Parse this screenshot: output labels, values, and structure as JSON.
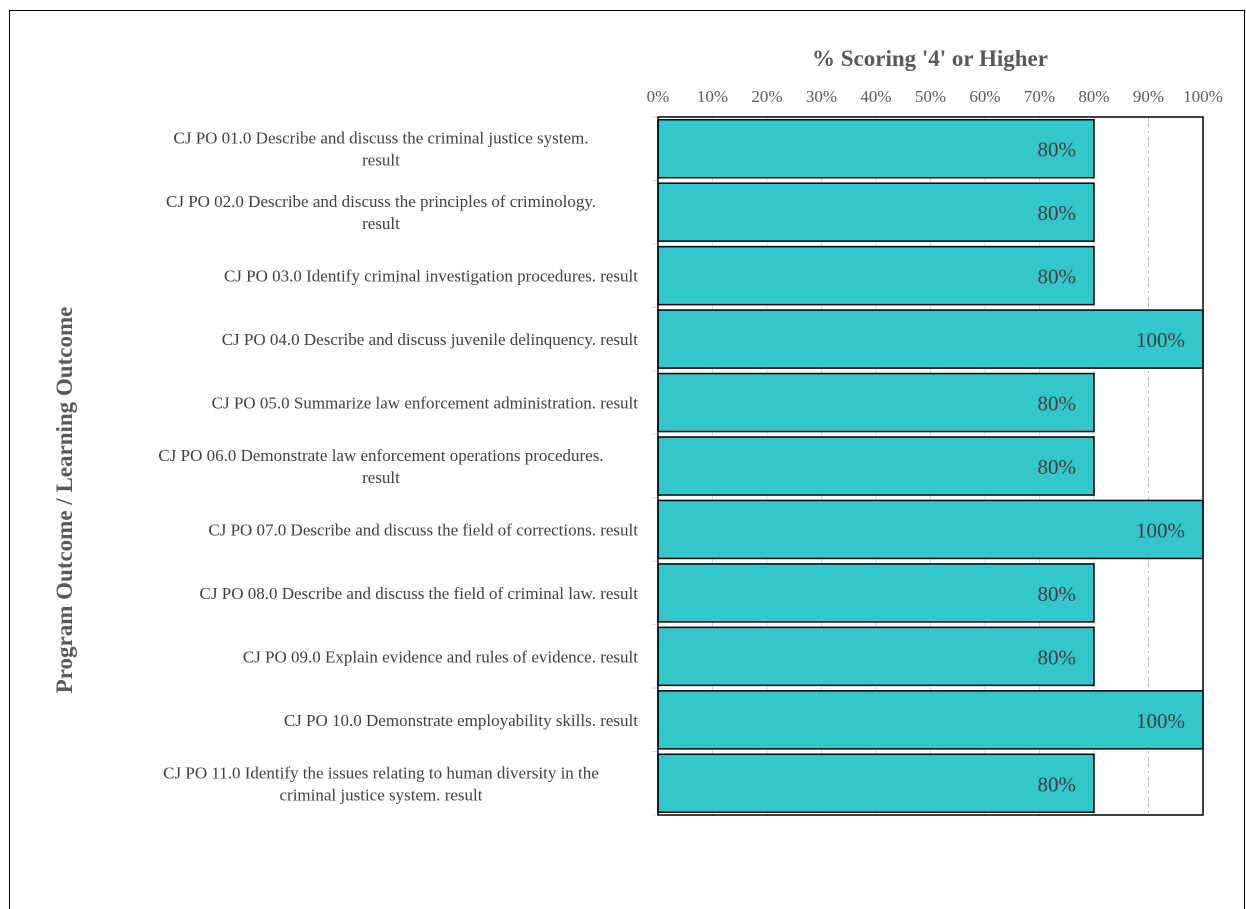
{
  "chart_data": {
    "type": "bar",
    "orientation": "horizontal",
    "title": "% Scoring '4' or Higher",
    "xlabel": "% Scoring '4' or Higher",
    "ylabel": "Program Outcome / Learning Outcome",
    "xlim": [
      0,
      100
    ],
    "x_ticks": [
      "0%",
      "10%",
      "20%",
      "30%",
      "40%",
      "50%",
      "60%",
      "70%",
      "80%",
      "90%",
      "100%"
    ],
    "x_axis_position": "top",
    "grid": true,
    "categories": [
      [
        "CJ PO 01.0 Describe and discuss the criminal justice system.",
        "result"
      ],
      [
        "CJ PO 02.0 Describe and discuss the principles of criminology.",
        "result"
      ],
      [
        "CJ PO 03.0 Identify criminal investigation procedures. result"
      ],
      [
        "CJ PO 04.0 Describe and discuss juvenile delinquency. result"
      ],
      [
        "CJ PO 05.0 Summarize law enforcement administration. result"
      ],
      [
        "CJ PO 06.0 Demonstrate law enforcement operations procedures.",
        "result"
      ],
      [
        "CJ PO 07.0 Describe and discuss the field of corrections. result"
      ],
      [
        "CJ PO 08.0 Describe and discuss the field of criminal law. result"
      ],
      [
        "CJ PO 09.0 Explain evidence and rules of evidence. result"
      ],
      [
        "CJ PO 10.0 Demonstrate employability skills. result"
      ],
      [
        "CJ PO 11.0 Identify the issues relating to human diversity in the",
        "criminal justice system. result"
      ]
    ],
    "values": [
      80,
      80,
      80,
      100,
      80,
      80,
      100,
      80,
      80,
      100,
      80
    ],
    "data_labels": [
      "80%",
      "80%",
      "80%",
      "100%",
      "80%",
      "80%",
      "100%",
      "80%",
      "80%",
      "100%",
      "80%"
    ],
    "colors": {
      "bar": "#33c6cc",
      "bar_border": "#000000",
      "grid": "#d9d9d9",
      "grid_90": "#bfbfbf"
    }
  }
}
